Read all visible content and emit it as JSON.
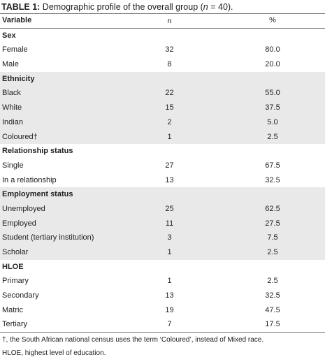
{
  "caption": {
    "label": "TABLE 1:",
    "text_before_n": " Demographic profile of the overall group (",
    "n_symbol": "n",
    "text_after_n": " = 40)."
  },
  "header": {
    "variable": "Variable",
    "n": "n",
    "percent": "%"
  },
  "sections": [
    {
      "title": "Sex",
      "rows": [
        {
          "label": "Female",
          "n": "32",
          "pct": "80.0"
        },
        {
          "label": "Male",
          "n": "8",
          "pct": "20.0"
        }
      ]
    },
    {
      "title": "Ethnicity",
      "rows": [
        {
          "label": "Black",
          "n": "22",
          "pct": "55.0"
        },
        {
          "label": "White",
          "n": "15",
          "pct": "37.5"
        },
        {
          "label": "Indian",
          "n": "2",
          "pct": "5.0"
        },
        {
          "label": "Coloured†",
          "n": "1",
          "pct": "2.5"
        }
      ]
    },
    {
      "title": "Relationship status",
      "rows": [
        {
          "label": "Single",
          "n": "27",
          "pct": "67.5"
        },
        {
          "label": "In a relationship",
          "n": "13",
          "pct": "32.5"
        }
      ]
    },
    {
      "title": "Employment status",
      "rows": [
        {
          "label": "Unemployed",
          "n": "25",
          "pct": "62.5"
        },
        {
          "label": "Employed",
          "n": "11",
          "pct": "27.5"
        },
        {
          "label": "Student (tertiary institution)",
          "n": "3",
          "pct": "7.5"
        },
        {
          "label": "Scholar",
          "n": "1",
          "pct": "2.5"
        }
      ]
    },
    {
      "title": "HLOE",
      "rows": [
        {
          "label": "Primary",
          "n": "1",
          "pct": "2.5"
        },
        {
          "label": "Secondary",
          "n": "13",
          "pct": "32.5"
        },
        {
          "label": "Matric",
          "n": "19",
          "pct": "47.5"
        },
        {
          "label": "Tertiary",
          "n": "7",
          "pct": "17.5"
        }
      ]
    }
  ],
  "footnotes": [
    "†, the South African national census uses the term ‘Coloured’, instead of Mixed race.",
    "HLOE, highest level of education."
  ]
}
